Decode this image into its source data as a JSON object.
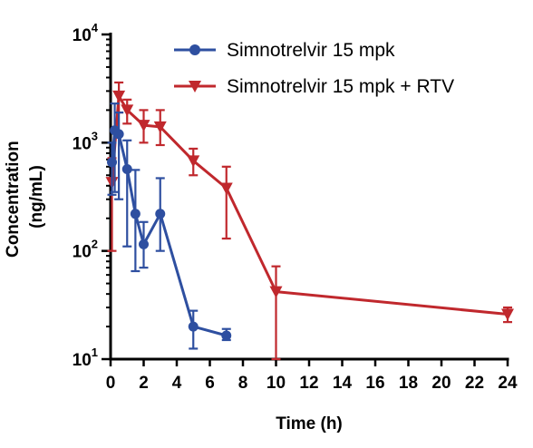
{
  "chart_data": {
    "type": "line",
    "xlabel": "Time (h)",
    "ylabel_lines": [
      "Concentration",
      "(ng/mL)"
    ],
    "xlim": [
      0,
      24
    ],
    "x_ticks": [
      0,
      2,
      4,
      6,
      8,
      10,
      12,
      14,
      16,
      18,
      20,
      22,
      24
    ],
    "x_tick_labels": [
      "0",
      "2",
      "4",
      "6",
      "8",
      "10",
      "12",
      "14",
      "16",
      "18",
      "20",
      "22",
      "24"
    ],
    "y_scale": "log",
    "ylim": [
      10,
      10000
    ],
    "y_ticks": [
      {
        "value": 10,
        "base": "10",
        "exp": "1"
      },
      {
        "value": 100,
        "base": "10",
        "exp": "2"
      },
      {
        "value": 1000,
        "base": "10",
        "exp": "3"
      },
      {
        "value": 10000,
        "base": "10",
        "exp": "4"
      }
    ],
    "legend_position": "top-right",
    "series": [
      {
        "name": "Simnotrelvir 15 mpk",
        "color": "#2e4fa0",
        "marker": "circle",
        "points": [
          {
            "x": 0.083,
            "y": 660,
            "low": 330,
            "high": 1000
          },
          {
            "x": 0.25,
            "y": 1300,
            "low": 350,
            "high": 2300
          },
          {
            "x": 0.5,
            "y": 1200,
            "low": 300,
            "high": 1900
          },
          {
            "x": 1,
            "y": 570,
            "low": 110,
            "high": 1050
          },
          {
            "x": 1.5,
            "y": 220,
            "low": 65,
            "high": 560
          },
          {
            "x": 2,
            "y": 115,
            "low": 70,
            "high": 185
          },
          {
            "x": 3,
            "y": 220,
            "low": 100,
            "high": 470
          },
          {
            "x": 5,
            "y": 20,
            "low": 12.5,
            "high": 28
          },
          {
            "x": 7,
            "y": 16.5,
            "low": 15,
            "high": 19
          }
        ]
      },
      {
        "name": "Simnotrelvir 15 mpk + RTV",
        "color": "#c0282d",
        "marker": "triangle-down",
        "points": [
          {
            "x": 0.083,
            "y": 430,
            "low": 100,
            "high": 720
          },
          {
            "x": 0.5,
            "y": 2700,
            "low": 1900,
            "high": 3600
          },
          {
            "x": 1,
            "y": 2000,
            "low": 1500,
            "high": 2500
          },
          {
            "x": 2,
            "y": 1450,
            "low": 1000,
            "high": 2000
          },
          {
            "x": 3,
            "y": 1400,
            "low": 950,
            "high": 2000
          },
          {
            "x": 5,
            "y": 680,
            "low": 500,
            "high": 880
          },
          {
            "x": 7,
            "y": 380,
            "low": 130,
            "high": 600
          },
          {
            "x": 10,
            "y": 42,
            "low": 10,
            "high": 72
          },
          {
            "x": 24,
            "y": 26,
            "low": 22,
            "high": 30
          }
        ]
      }
    ]
  }
}
